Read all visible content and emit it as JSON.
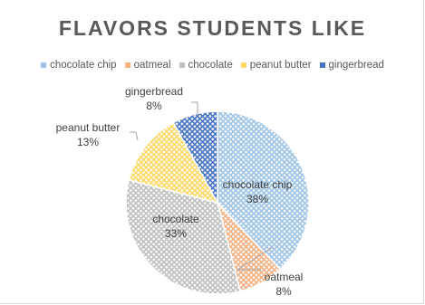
{
  "chart_data": {
    "type": "pie",
    "title": "FLAVORS STUDENTS LIKE",
    "legend_position": "top",
    "slices": [
      {
        "label": "chocolate chip",
        "value": 38,
        "value_label": "38%",
        "color": "#9dc3e6",
        "pattern": "grid"
      },
      {
        "label": "oatmeal",
        "value": 8,
        "value_label": "8%",
        "color": "#f4b183",
        "pattern": "grid"
      },
      {
        "label": "chocolate",
        "value": 33,
        "value_label": "33%",
        "color": "#bfbfbf",
        "pattern": "grid"
      },
      {
        "label": "peanut butter",
        "value": 13,
        "value_label": "13%",
        "color": "#ffd966",
        "pattern": "grid"
      },
      {
        "label": "gingerbread",
        "value": 8,
        "value_label": "8%",
        "color": "#4472c4",
        "pattern": "grid"
      }
    ]
  }
}
